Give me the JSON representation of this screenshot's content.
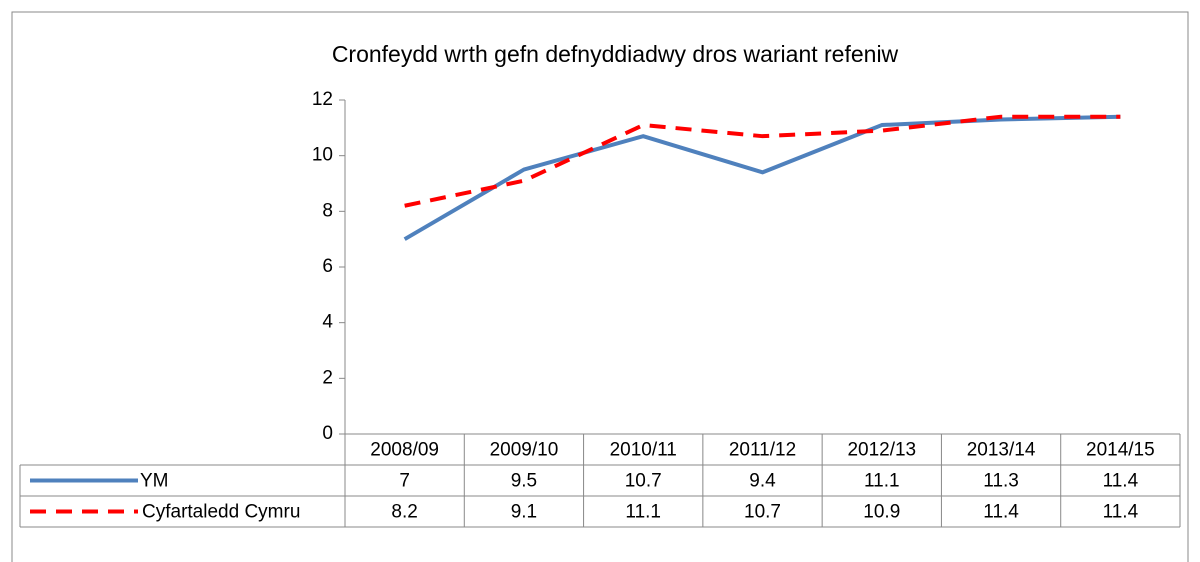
{
  "chart_data": {
    "type": "line",
    "title": "Cronfeydd wrth gefn defnyddiadwy dros wariant refeniw",
    "categories": [
      "2008/09",
      "2009/10",
      "2010/11",
      "2011/12",
      "2012/13",
      "2013/14",
      "2014/15"
    ],
    "series": [
      {
        "name": "YM",
        "color": "#4f81bd",
        "values": [
          7,
          9.5,
          10.7,
          9.4,
          11.1,
          11.3,
          11.4
        ]
      },
      {
        "name": "Cyfartaledd Cymru",
        "color": "#ff0000",
        "dashed": true,
        "values": [
          8.2,
          9.1,
          11.1,
          10.7,
          10.9,
          11.4,
          11.4
        ]
      }
    ],
    "ylim": [
      0,
      12
    ],
    "yticks": [
      0,
      2,
      4,
      6,
      8,
      10,
      12
    ],
    "grid": false,
    "data_table": true
  }
}
